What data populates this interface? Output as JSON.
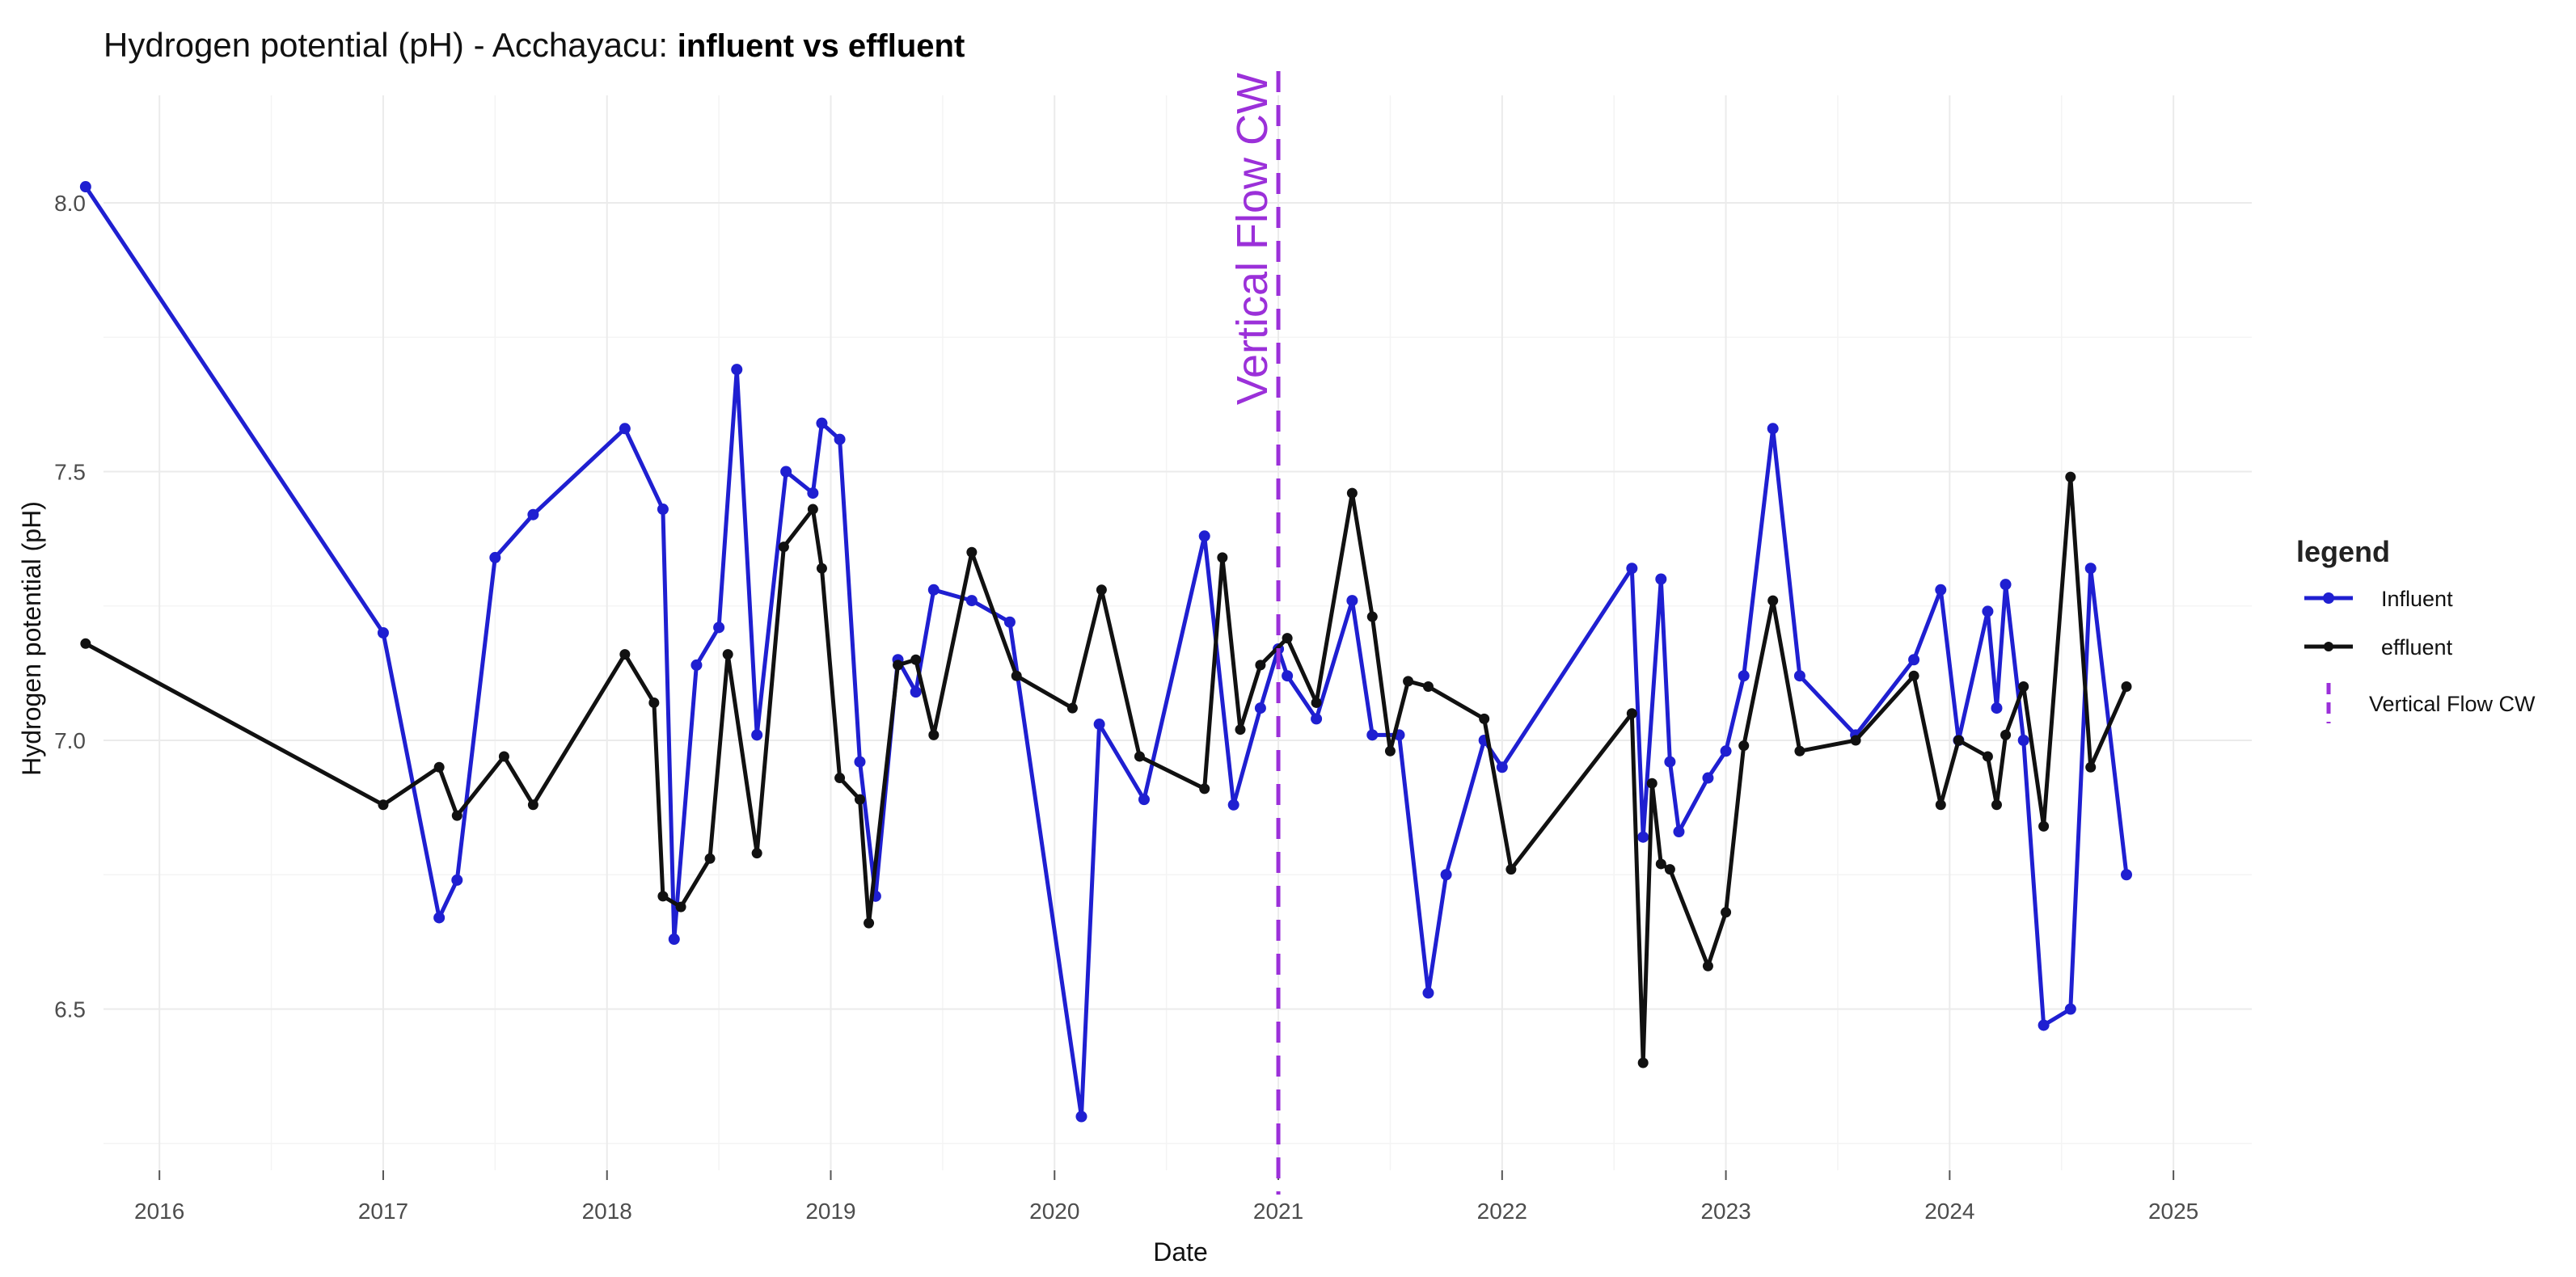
{
  "chart_data": {
    "type": "line",
    "title": "Hydrogen potential (pH) - Acchayacu: ",
    "title_bold": "influent vs effluent",
    "xlabel": "Date",
    "ylabel": "Hydrogen potential (pH)",
    "xlim": [
      2015.75,
      2025.35
    ],
    "ylim": [
      6.2,
      8.2
    ],
    "x_ticks": [
      2016,
      2017,
      2018,
      2019,
      2020,
      2021,
      2022,
      2023,
      2024,
      2025
    ],
    "x_tick_labels": [
      "2016",
      "2017",
      "2018",
      "2019",
      "2020",
      "2021",
      "2022",
      "2023",
      "2024",
      "2025"
    ],
    "y_ticks": [
      6.5,
      7.0,
      7.5,
      8.0
    ],
    "y_tick_labels": [
      "6.5",
      "7.0",
      "7.5",
      "8.0"
    ],
    "grid": true,
    "legend": {
      "title": "legend",
      "position": "right",
      "entries": [
        "Influent",
        "effluent",
        "Vertical Flow CW"
      ]
    },
    "annotation": {
      "type": "vline",
      "x": 2021.0,
      "label": "Vertical Flow CW",
      "color": "#9b30d9"
    },
    "series": [
      {
        "name": "Influent",
        "color": "#1f1fd1",
        "x": [
          2015.67,
          2017.0,
          2017.25,
          2017.33,
          2017.5,
          2017.67,
          2018.08,
          2018.25,
          2018.3,
          2018.4,
          2018.5,
          2018.58,
          2018.67,
          2018.8,
          2018.92,
          2018.96,
          2019.04,
          2019.13,
          2019.2,
          2019.3,
          2019.38,
          2019.46,
          2019.63,
          2019.8,
          2020.12,
          2020.2,
          2020.4,
          2020.67,
          2020.8,
          2020.92,
          2021.0,
          2021.04,
          2021.17,
          2021.33,
          2021.42,
          2021.54,
          2021.67,
          2021.75,
          2021.92,
          2022.0,
          2022.58,
          2022.63,
          2022.71,
          2022.75,
          2022.79,
          2022.92,
          2023.0,
          2023.08,
          2023.21,
          2023.33,
          2023.58,
          2023.84,
          2023.96,
          2024.04,
          2024.17,
          2024.21,
          2024.25,
          2024.33,
          2024.42,
          2024.54,
          2024.63,
          2024.79
        ],
        "values": [
          8.03,
          7.2,
          6.67,
          6.74,
          7.34,
          7.42,
          7.58,
          7.43,
          6.63,
          7.14,
          7.21,
          7.69,
          7.01,
          7.5,
          7.46,
          7.59,
          7.56,
          6.96,
          6.71,
          7.15,
          7.09,
          7.28,
          7.26,
          7.22,
          6.3,
          7.03,
          6.89,
          7.38,
          6.88,
          7.06,
          7.17,
          7.12,
          7.04,
          7.26,
          7.01,
          7.01,
          6.53,
          6.75,
          7.0,
          6.95,
          7.32,
          6.82,
          7.3,
          6.96,
          6.83,
          6.93,
          6.98,
          7.12,
          7.58,
          7.12,
          7.01,
          7.15,
          7.28,
          7.0,
          7.24,
          7.06,
          7.29,
          7.0,
          6.47,
          6.5,
          7.32,
          6.75
        ]
      },
      {
        "name": "effluent",
        "color": "#111111",
        "x": [
          2015.67,
          2017.0,
          2017.25,
          2017.33,
          2017.54,
          2017.67,
          2018.08,
          2018.21,
          2018.25,
          2018.33,
          2018.46,
          2018.54,
          2018.67,
          2018.79,
          2018.92,
          2018.96,
          2019.04,
          2019.13,
          2019.17,
          2019.3,
          2019.38,
          2019.46,
          2019.63,
          2019.83,
          2020.08,
          2020.21,
          2020.38,
          2020.67,
          2020.75,
          2020.83,
          2020.92,
          2021.04,
          2021.17,
          2021.33,
          2021.42,
          2021.5,
          2021.58,
          2021.67,
          2021.92,
          2022.04,
          2022.58,
          2022.63,
          2022.67,
          2022.71,
          2022.75,
          2022.92,
          2023.0,
          2023.08,
          2023.21,
          2023.33,
          2023.58,
          2023.84,
          2023.96,
          2024.04,
          2024.17,
          2024.21,
          2024.25,
          2024.33,
          2024.42,
          2024.54,
          2024.63,
          2024.79
        ],
        "values": [
          7.18,
          6.88,
          6.95,
          6.86,
          6.97,
          6.88,
          7.16,
          7.07,
          6.71,
          6.69,
          6.78,
          7.16,
          6.79,
          7.36,
          7.43,
          7.32,
          6.93,
          6.89,
          6.66,
          7.14,
          7.15,
          7.01,
          7.35,
          7.12,
          7.06,
          7.28,
          6.97,
          6.91,
          7.34,
          7.02,
          7.14,
          7.19,
          7.07,
          7.46,
          7.23,
          6.98,
          7.11,
          7.1,
          7.04,
          6.76,
          7.05,
          6.4,
          6.92,
          6.77,
          6.76,
          6.58,
          6.68,
          6.99,
          7.26,
          6.98,
          7.0,
          7.12,
          6.88,
          7.0,
          6.97,
          6.88,
          7.01,
          7.1,
          6.84,
          7.49,
          6.95,
          7.1
        ]
      }
    ]
  }
}
